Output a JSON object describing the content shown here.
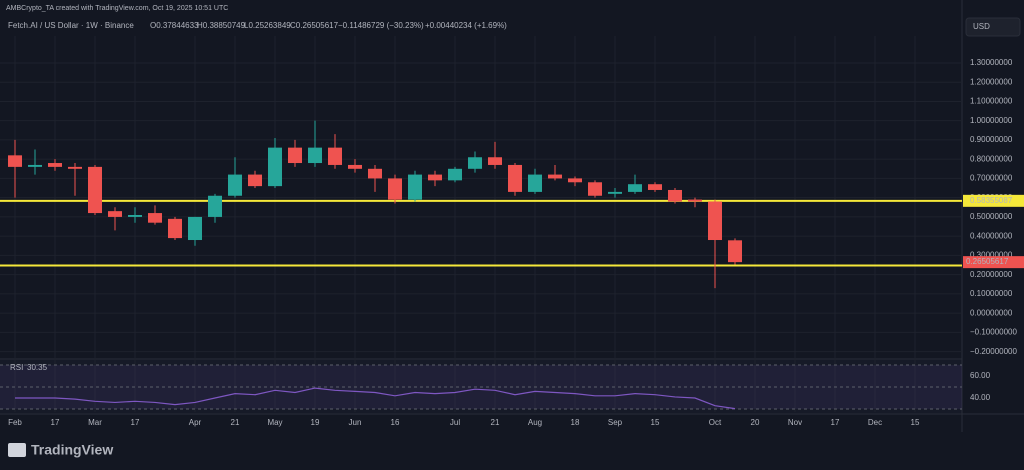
{
  "header": {
    "credit": "AMBCrypto_TA created with TradingView.com, Oct 19, 2025 10:51 UTC",
    "symbol": "Fetch.AI / US Dollar · 1W · Binance",
    "ohlc": [
      "O0.37844633",
      "H0.38850749",
      "L0.25263849",
      "C0.26505617"
    ],
    "change": "−0.11486729 (−30.23%)",
    "volume_change": "+0.00440234 (+1.69%)",
    "currency": "USD"
  },
  "footer": {
    "brand": "TradingView"
  },
  "chart_data": [
    {
      "type": "candlestick",
      "categories": [
        "Feb",
        null,
        "17",
        null,
        "Mar",
        null,
        "17",
        null,
        null,
        "Apr",
        null,
        "21",
        null,
        "May",
        null,
        "19",
        null,
        "Jun",
        null,
        "16",
        null,
        null,
        "Jul",
        null,
        "21",
        null,
        "Aug",
        null,
        "18",
        null,
        "Sep",
        null,
        "15",
        null,
        null,
        "Oct",
        null,
        "20",
        null,
        "Nov",
        null,
        "17",
        null,
        "Dec",
        null,
        "15",
        null,
        null
      ],
      "open": [
        0.82,
        0.76,
        0.78,
        0.76,
        0.76,
        0.53,
        0.5,
        0.52,
        0.49,
        0.38,
        0.5,
        0.61,
        0.72,
        0.66,
        0.86,
        0.78,
        0.86,
        0.77,
        0.75,
        0.7,
        0.59,
        0.72,
        0.69,
        0.75,
        0.81,
        0.77,
        0.63,
        0.72,
        0.7,
        0.68,
        0.62,
        0.63,
        0.67,
        0.64,
        0.59,
        0.58,
        0.37844633,
        null,
        null,
        null,
        null,
        null,
        null,
        null,
        null,
        null,
        null,
        null
      ],
      "high": [
        0.9,
        0.85,
        0.8,
        0.78,
        0.77,
        0.55,
        0.55,
        0.56,
        0.5,
        0.5,
        0.62,
        0.81,
        0.74,
        0.91,
        0.9,
        1.0,
        0.93,
        0.8,
        0.77,
        0.72,
        0.74,
        0.74,
        0.76,
        0.84,
        0.89,
        0.78,
        0.75,
        0.77,
        0.71,
        0.69,
        0.65,
        0.72,
        0.68,
        0.65,
        0.6,
        0.59,
        0.38850749,
        null,
        null,
        null,
        null,
        null,
        null,
        null,
        null,
        null,
        null,
        null
      ],
      "low": [
        0.6,
        0.72,
        0.74,
        0.61,
        0.51,
        0.43,
        0.47,
        0.46,
        0.38,
        0.35,
        0.47,
        0.6,
        0.65,
        0.65,
        0.76,
        0.76,
        0.75,
        0.73,
        0.63,
        0.57,
        0.58,
        0.66,
        0.68,
        0.73,
        0.75,
        0.61,
        0.62,
        0.69,
        0.66,
        0.6,
        0.6,
        0.62,
        0.63,
        0.57,
        0.55,
        0.13,
        0.25263849,
        null,
        null,
        null,
        null,
        null,
        null,
        null,
        null,
        null,
        null,
        null
      ],
      "close": [
        0.76,
        0.77,
        0.76,
        0.75,
        0.52,
        0.5,
        0.51,
        0.47,
        0.39,
        0.5,
        0.61,
        0.72,
        0.66,
        0.86,
        0.78,
        0.86,
        0.77,
        0.75,
        0.7,
        0.59,
        0.72,
        0.69,
        0.75,
        0.81,
        0.77,
        0.63,
        0.72,
        0.7,
        0.68,
        0.61,
        0.63,
        0.67,
        0.64,
        0.58,
        0.58,
        0.38,
        0.26505617,
        null,
        null,
        null,
        null,
        null,
        null,
        null,
        null,
        null,
        null,
        null
      ],
      "up_color": "#26a69a",
      "down_color": "#ef5350",
      "ylim": [
        -0.233,
        1.44
      ],
      "yticks": [
        {
          "value": 1.3,
          "label": "1.30000000"
        },
        {
          "value": 1.2,
          "label": "1.20000000"
        },
        {
          "value": 1.1,
          "label": "1.10000000"
        },
        {
          "value": 1.0,
          "label": "1.00000000"
        },
        {
          "value": 0.9,
          "label": "0.90000000"
        },
        {
          "value": 0.8,
          "label": "0.80000000"
        },
        {
          "value": 0.7,
          "label": "0.70000000"
        },
        {
          "value": 0.6,
          "label": "0.60000000"
        },
        {
          "value": 0.5,
          "label": "0.50000000"
        },
        {
          "value": 0.4,
          "label": "0.40000000"
        },
        {
          "value": 0.3,
          "label": "0.30000000"
        },
        {
          "value": 0.2,
          "label": "0.20000000"
        },
        {
          "value": 0.1,
          "label": "0.10000000"
        },
        {
          "value": 0,
          "label": "0.00000000"
        },
        {
          "value": -0.1,
          "label": "−0.10000000"
        },
        {
          "value": -0.2,
          "label": "−0.20000000"
        }
      ],
      "grid": true,
      "hlines": [
        {
          "value": 0.58355087,
          "label": "0.58355087",
          "color": "#f5e83a"
        },
        {
          "value": 0.2475,
          "color": "#f5e83a"
        }
      ],
      "last_price": {
        "value": 0.26505617,
        "label": "0.26505617",
        "color": "#ef5350"
      }
    },
    {
      "type": "line",
      "title": "RSI",
      "color": "#7e57c2",
      "values": [
        40,
        40,
        40,
        39,
        37,
        36,
        37,
        36,
        34,
        36,
        40,
        44,
        43,
        47,
        45,
        49,
        47,
        46,
        45,
        42,
        45,
        44,
        45,
        48,
        47,
        43,
        46,
        45,
        44,
        42,
        42,
        44,
        43,
        41,
        40,
        33,
        30.35,
        null,
        null,
        null,
        null,
        null,
        null,
        null,
        null,
        null,
        null,
        null
      ],
      "ylim": [
        27.3,
        72.7
      ],
      "yticks": [
        {
          "value": 60,
          "label": "60.00"
        },
        {
          "value": 40,
          "label": "40.00"
        }
      ],
      "bands": [
        70,
        50,
        30
      ]
    }
  ]
}
